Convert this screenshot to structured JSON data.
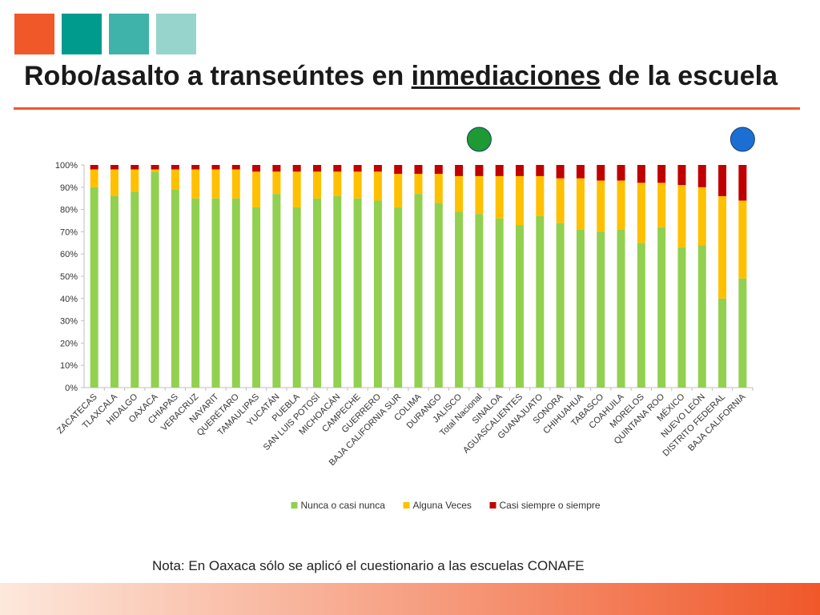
{
  "header": {
    "square_colors": [
      "#f0582a",
      "#009b8d",
      "#3fb3aa",
      "#96d4cc"
    ],
    "title_pre": "Robo/asalto a transeúntes en ",
    "title_underlined": "inmediaciones",
    "title_post": " de la escuela",
    "rule_color": "#f0582a"
  },
  "markers": [
    {
      "name": "green-circle",
      "color": "#1e9a34",
      "category": "Total Nacional"
    },
    {
      "name": "blue-circle",
      "color": "#1b6fd2",
      "category": "BAJA CALIFORNIA"
    }
  ],
  "chart_data": {
    "type": "bar",
    "stacked": true,
    "categories": [
      "ZACATECAS",
      "TLAXCALA",
      "HIDALGO",
      "OAXACA",
      "CHIAPAS",
      "VERACRUZ",
      "NAYARIT",
      "QUERÉTARO",
      "TAMAULIPAS",
      "YUCATÁN",
      "PUEBLA",
      "SAN LUIS POTOSÍ",
      "MICHOACÁN",
      "CAMPECHE",
      "GUERRERO",
      "BAJA CALIFORNIA SUR",
      "COLIMA",
      "DURANGO",
      "JALISCO",
      "Total Nacional",
      "SINALOA",
      "AGUASCALIENTES",
      "GUANAJUATO",
      "SONORA",
      "CHIHUAHUA",
      "TABASCO",
      "COAHUILA",
      "MORELOS",
      "QUINTANA ROO",
      "MÉXICO",
      "NUEVO LEÓN",
      "DISTRITO FEDERAL",
      "BAJA CALIFORNIA"
    ],
    "series": [
      {
        "name": "Nunca o casi nunca",
        "color": "#92d050",
        "values": [
          90,
          86,
          88,
          97,
          89,
          85,
          85,
          85,
          81,
          87,
          81,
          85,
          86,
          85,
          84,
          81,
          87,
          83,
          79,
          78,
          76,
          73,
          77,
          74,
          71,
          70,
          71,
          65,
          72,
          63,
          64,
          40,
          49
        ]
      },
      {
        "name": "Alguna Veces",
        "color": "#ffc000",
        "values": [
          8,
          12,
          10,
          1,
          9,
          13,
          13,
          13,
          16,
          10,
          16,
          12,
          11,
          12,
          13,
          15,
          9,
          13,
          16,
          17,
          19,
          22,
          18,
          20,
          23,
          23,
          22,
          27,
          20,
          28,
          26,
          46,
          35
        ]
      },
      {
        "name": "Casi siempre o siempre",
        "color": "#c00000",
        "values": [
          2,
          2,
          2,
          2,
          2,
          2,
          2,
          2,
          3,
          3,
          3,
          3,
          3,
          3,
          3,
          4,
          4,
          4,
          5,
          5,
          5,
          5,
          5,
          6,
          6,
          7,
          7,
          8,
          8,
          9,
          10,
          14,
          16
        ]
      }
    ],
    "y_ticks": [
      "0%",
      "10%",
      "20%",
      "30%",
      "40%",
      "50%",
      "60%",
      "70%",
      "80%",
      "90%",
      "100%"
    ],
    "ylim": [
      0,
      100
    ],
    "grid": false,
    "legend_position": "bottom"
  },
  "note": "Nota: En Oaxaca sólo se aplicó el cuestionario a las escuelas CONAFE",
  "footer": {
    "gradient_from": "#fde8dc",
    "gradient_to": "#f0582a"
  }
}
